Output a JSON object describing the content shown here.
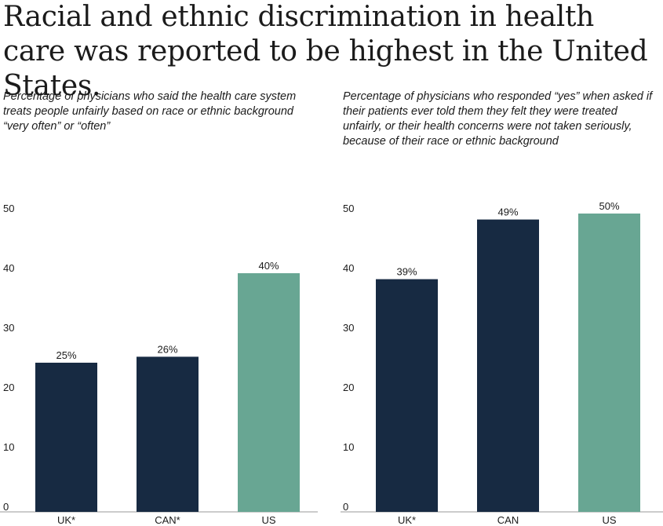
{
  "title": "Racial and ethnic discrimination in health care was reported to be highest in the United States.",
  "colors": {
    "default_bar": "#172a42",
    "highlight_bar": "#68a693",
    "axis": "#999999",
    "text": "#1b1b1b"
  },
  "chart_data": [
    {
      "type": "bar",
      "title": "Percentage of physicians who said the health care system treats people unfairly based on race or ethnic background “very often” or “often”",
      "categories": [
        "UK*",
        "CAN*",
        "US"
      ],
      "values": [
        25,
        26,
        40
      ],
      "data_labels": [
        "25%",
        "26%",
        "40%"
      ],
      "highlight": [
        false,
        false,
        true
      ],
      "yticks": [
        0,
        10,
        20,
        30,
        40,
        50
      ],
      "ylim": [
        0,
        50
      ],
      "xlabel": "",
      "ylabel": "",
      "grid": false
    },
    {
      "type": "bar",
      "title": "Percentage of physicians who responded “yes” when asked if their patients ever told them they felt they were treated unfairly, or their health concerns were not taken seriously, because of their race or ethnic background",
      "categories": [
        "UK*",
        "CAN",
        "US"
      ],
      "values": [
        39,
        49,
        50
      ],
      "data_labels": [
        "39%",
        "49%",
        "50%"
      ],
      "highlight": [
        false,
        false,
        true
      ],
      "yticks": [
        0,
        10,
        20,
        30,
        40,
        50
      ],
      "ylim": [
        0,
        50
      ],
      "xlabel": "",
      "ylabel": "",
      "grid": false
    }
  ]
}
